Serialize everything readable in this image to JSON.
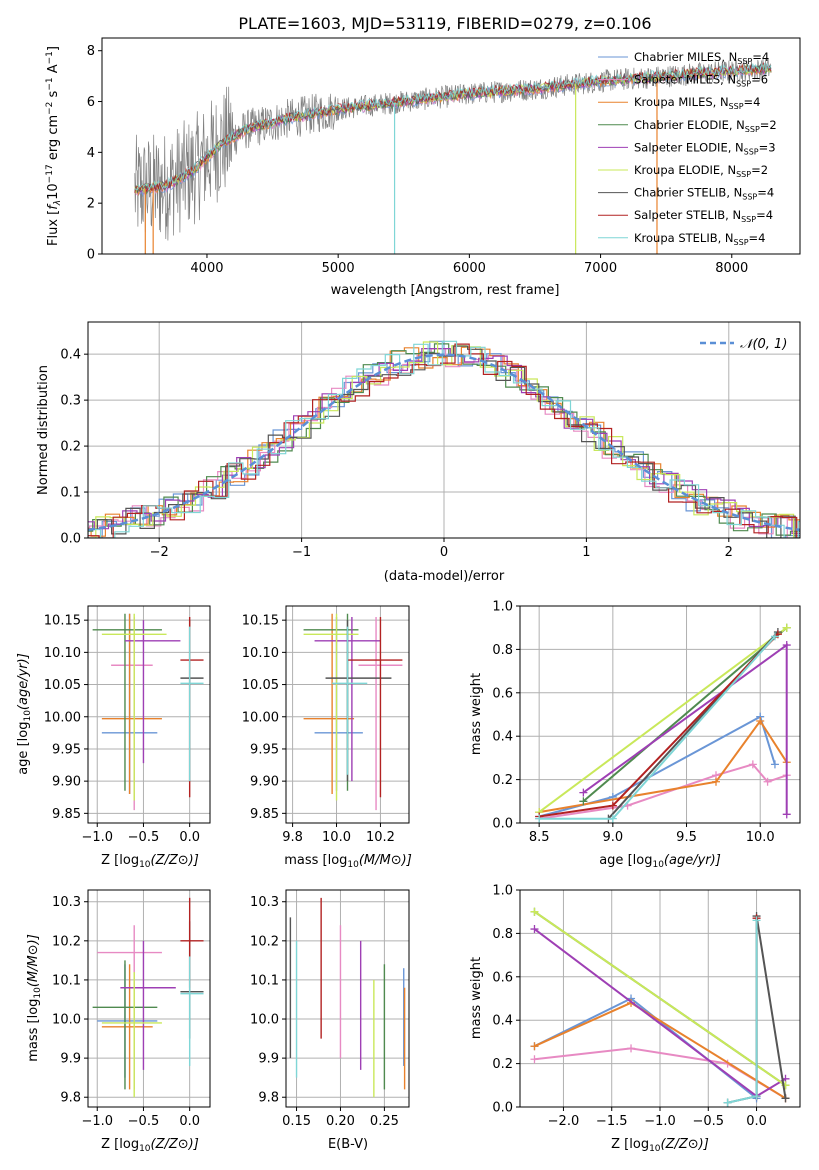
{
  "title": "PLATE=1603, MJD=53119, FIBERID=0279, z=0.106",
  "colors": {
    "chabrier_miles": "#6a96d6",
    "salpeter_miles": "#e78ac3",
    "kroupa_miles": "#e8822d",
    "chabrier_elodie": "#4f8a4f",
    "salpeter_elodie": "#9e3fb4",
    "kroupa_elodie": "#c9e85a",
    "chabrier_stelib": "#555555",
    "salpeter_stelib": "#b22222",
    "kroupa_stelib": "#7fd6d6",
    "normal_curve": "#5a8fd6"
  },
  "chart_data": [
    {
      "id": "spectrum",
      "type": "line",
      "xlabel": "wavelength [Angstrom, rest frame]",
      "ylabel_parts": [
        "Flux [",
        "f",
        "λ",
        "10",
        "−17",
        " erg cm",
        "−2",
        " s",
        "−1",
        " A",
        "−1",
        "]"
      ],
      "xlim": [
        3200,
        8520
      ],
      "ylim": [
        0,
        8.5
      ],
      "xticks": [
        4000,
        5000,
        6000,
        7000,
        8000
      ],
      "yticks": [
        0,
        2,
        4,
        6,
        8
      ],
      "legend_position": "top-right",
      "legend": [
        {
          "label": "Chabrier MILES, N",
          "sub": "SSP",
          "suffix": "=4",
          "color_key": "chabrier_miles"
        },
        {
          "label": "Salpeter MILES, N",
          "sub": "SSP",
          "suffix": "=6",
          "color_key": "salpeter_miles"
        },
        {
          "label": "Kroupa MILES, N",
          "sub": "SSP",
          "suffix": "=4",
          "color_key": "kroupa_miles"
        },
        {
          "label": "Chabrier ELODIE, N",
          "sub": "SSP",
          "suffix": "=2",
          "color_key": "chabrier_elodie"
        },
        {
          "label": "Salpeter ELODIE, N",
          "sub": "SSP",
          "suffix": "=3",
          "color_key": "salpeter_elodie"
        },
        {
          "label": "Kroupa ELODIE, N",
          "sub": "SSP",
          "suffix": "=2",
          "color_key": "kroupa_elodie"
        },
        {
          "label": "Chabrier STELIB, N",
          "sub": "SSP",
          "suffix": "=4",
          "color_key": "chabrier_stelib"
        },
        {
          "label": "Salpeter STELIB, N",
          "sub": "SSP",
          "suffix": "=4",
          "color_key": "salpeter_stelib"
        },
        {
          "label": "Kroupa STELIB, N",
          "sub": "SSP",
          "suffix": "=4",
          "color_key": "kroupa_stelib"
        }
      ],
      "continuum": {
        "x": [
          3450,
          3700,
          3900,
          4100,
          4300,
          4600,
          5000,
          5500,
          6000,
          6500,
          7000,
          7500,
          8000,
          8300
        ],
        "y": [
          2.5,
          2.7,
          3.3,
          4.3,
          4.9,
          5.3,
          5.7,
          6.0,
          6.3,
          6.5,
          6.8,
          7.0,
          7.2,
          7.3
        ]
      },
      "spikes": [
        {
          "x": 3530,
          "color_key": "kroupa_miles"
        },
        {
          "x": 3590,
          "color_key": "kroupa_miles"
        },
        {
          "x": 5430,
          "color_key": "kroupa_stelib"
        },
        {
          "x": 6810,
          "color_key": "kroupa_elodie"
        },
        {
          "x": 7430,
          "color_key": "kroupa_miles"
        }
      ]
    },
    {
      "id": "residuals",
      "type": "line",
      "xlabel": "(data-model)/error",
      "ylabel": "Normed distribution",
      "xlim": [
        -2.5,
        2.5
      ],
      "ylim": [
        0,
        0.47
      ],
      "xticks": [
        -2,
        -1,
        0,
        1,
        2
      ],
      "yticks": [
        0.0,
        0.1,
        0.2,
        0.3,
        0.4
      ],
      "grid": true,
      "legend_position": "top-right",
      "legend_label": "𝒩(0, 1)",
      "curve": "normal(0,1)"
    },
    {
      "id": "age_vs_Z",
      "type": "scatter",
      "xlabel_pre": "Z [log",
      "xlabel_sub": "10",
      "xlabel_post": "(Z/Z⊙)]",
      "ylabel_pre": "age  [log",
      "ylabel_sub": "10",
      "ylabel_post": "(age/yr)]",
      "xlim": [
        -1.1,
        0.22
      ],
      "ylim": [
        9.835,
        10.172
      ],
      "xticks": [
        -1.0,
        -0.5,
        0.0
      ],
      "yticks": [
        9.85,
        9.9,
        9.95,
        10.0,
        10.05,
        10.1,
        10.15
      ],
      "grid": true,
      "points": [
        {
          "key": "chabrier_miles",
          "x": -0.65,
          "y": 9.975,
          "xe": [
            -0.95,
            -0.35
          ],
          "ye": [
            9.88,
            10.16
          ]
        },
        {
          "key": "salpeter_miles",
          "x": -0.6,
          "y": 10.08,
          "xe": [
            -0.85,
            -0.4
          ],
          "ye": [
            9.855,
            10.155
          ]
        },
        {
          "key": "kroupa_miles",
          "x": -0.65,
          "y": 9.997,
          "xe": [
            -0.95,
            -0.3
          ],
          "ye": [
            9.88,
            10.16
          ]
        },
        {
          "key": "chabrier_elodie",
          "x": -0.7,
          "y": 10.135,
          "xe": [
            -1.05,
            -0.3
          ],
          "ye": [
            9.885,
            10.16
          ]
        },
        {
          "key": "salpeter_elodie",
          "x": -0.5,
          "y": 10.118,
          "xe": [
            -0.7,
            -0.1
          ],
          "ye": [
            9.928,
            10.15
          ]
        },
        {
          "key": "kroupa_elodie",
          "x": -0.6,
          "y": 10.128,
          "xe": [
            -0.95,
            -0.25
          ],
          "ye": [
            9.87,
            10.16
          ]
        },
        {
          "key": "chabrier_stelib",
          "x": 0.0,
          "y": 10.06,
          "xe": [
            -0.1,
            0.15
          ],
          "ye": [
            9.9,
            10.15
          ]
        },
        {
          "key": "salpeter_stelib",
          "x": 0.0,
          "y": 10.088,
          "xe": [
            -0.1,
            0.15
          ],
          "ye": [
            9.875,
            10.155
          ]
        },
        {
          "key": "kroupa_stelib",
          "x": 0.0,
          "y": 10.052,
          "xe": [
            -0.1,
            0.15
          ],
          "ye": [
            9.9,
            10.14
          ]
        }
      ]
    },
    {
      "id": "age_vs_mass",
      "type": "scatter",
      "xlabel_pre": "mass [log",
      "xlabel_sub": "10",
      "xlabel_post": "(M/M⊙)]",
      "xlim": [
        9.77,
        10.33
      ],
      "ylim": [
        9.835,
        10.172
      ],
      "xticks": [
        9.8,
        10.0,
        10.2
      ],
      "yticks": [
        9.85,
        9.9,
        9.95,
        10.0,
        10.05,
        10.1,
        10.15
      ],
      "grid": true,
      "points": [
        {
          "key": "chabrier_miles",
          "x": 10.0,
          "y": 9.975,
          "xe": [
            9.9,
            10.12
          ],
          "ye": [
            9.885,
            10.155
          ]
        },
        {
          "key": "salpeter_miles",
          "x": 10.18,
          "y": 10.08,
          "xe": [
            10.1,
            10.3
          ],
          "ye": [
            9.855,
            10.155
          ]
        },
        {
          "key": "kroupa_miles",
          "x": 9.98,
          "y": 9.997,
          "xe": [
            9.85,
            10.08
          ],
          "ye": [
            9.88,
            10.16
          ]
        },
        {
          "key": "chabrier_elodie",
          "x": 10.05,
          "y": 10.135,
          "xe": [
            9.85,
            10.1
          ],
          "ye": [
            9.885,
            10.16
          ]
        },
        {
          "key": "salpeter_elodie",
          "x": 10.07,
          "y": 10.118,
          "xe": [
            9.9,
            10.2
          ],
          "ye": [
            9.9,
            10.155
          ]
        },
        {
          "key": "kroupa_elodie",
          "x": 10.0,
          "y": 10.128,
          "xe": [
            9.85,
            10.1
          ],
          "ye": [
            9.87,
            10.16
          ]
        },
        {
          "key": "chabrier_stelib",
          "x": 10.05,
          "y": 10.06,
          "xe": [
            9.95,
            10.25
          ],
          "ye": [
            9.9,
            10.15
          ]
        },
        {
          "key": "salpeter_stelib",
          "x": 10.2,
          "y": 10.088,
          "xe": [
            10.05,
            10.3
          ],
          "ye": [
            9.875,
            10.155
          ]
        },
        {
          "key": "kroupa_stelib",
          "x": 10.05,
          "y": 10.052,
          "xe": [
            9.98,
            10.14
          ],
          "ye": [
            9.91,
            10.14
          ]
        }
      ]
    },
    {
      "id": "massweight_vs_age",
      "type": "line",
      "xlabel_pre": "age  [log",
      "xlabel_sub": "10",
      "xlabel_post": "(age/yr)]",
      "ylabel": "mass weight",
      "xlim": [
        8.37,
        10.27
      ],
      "ylim": [
        0.0,
        1.0
      ],
      "xticks": [
        8.5,
        9.0,
        9.5,
        10.0
      ],
      "yticks": [
        0.0,
        0.2,
        0.4,
        0.6,
        0.8,
        1.0
      ],
      "grid": true,
      "series": [
        {
          "key": "chabrier_miles",
          "x": [
            8.5,
            9.0,
            10.0,
            10.1
          ],
          "y": [
            0.03,
            0.12,
            0.49,
            0.27
          ]
        },
        {
          "key": "salpeter_miles",
          "x": [
            8.5,
            9.1,
            9.7,
            9.95,
            10.05,
            10.18
          ],
          "y": [
            0.02,
            0.08,
            0.22,
            0.27,
            0.19,
            0.22
          ]
        },
        {
          "key": "kroupa_miles",
          "x": [
            8.5,
            9.7,
            10.0,
            10.18
          ],
          "y": [
            0.05,
            0.19,
            0.47,
            0.28
          ]
        },
        {
          "key": "chabrier_elodie",
          "x": [
            8.8,
            10.18
          ],
          "y": [
            0.1,
            0.9
          ]
        },
        {
          "key": "salpeter_elodie",
          "x": [
            8.8,
            10.18,
            10.18
          ],
          "y": [
            0.14,
            0.82,
            0.04
          ]
        },
        {
          "key": "kroupa_elodie",
          "x": [
            8.5,
            10.18
          ],
          "y": [
            0.05,
            0.9
          ]
        },
        {
          "key": "chabrier_stelib",
          "x": [
            8.97,
            10.12
          ],
          "y": [
            0.02,
            0.88
          ]
        },
        {
          "key": "salpeter_stelib",
          "x": [
            8.5,
            9.0,
            10.12
          ],
          "y": [
            0.03,
            0.08,
            0.87
          ]
        },
        {
          "key": "kroupa_stelib",
          "x": [
            8.5,
            9.0,
            10.1
          ],
          "y": [
            0.02,
            0.02,
            0.86
          ]
        }
      ]
    },
    {
      "id": "mass_vs_Z",
      "type": "scatter",
      "xlabel_pre": "Z [log",
      "xlabel_sub": "10",
      "xlabel_post": "(Z/Z⊙)]",
      "ylabel_pre": "mass [log",
      "ylabel_sub": "10",
      "ylabel_post": "(M/M⊙)]",
      "xlim": [
        -1.1,
        0.22
      ],
      "ylim": [
        9.775,
        10.33
      ],
      "xticks": [
        -1.0,
        -0.5,
        0.0
      ],
      "yticks": [
        9.8,
        9.9,
        10.0,
        10.1,
        10.2,
        10.3
      ],
      "grid": true,
      "points": [
        {
          "key": "chabrier_miles",
          "x": -0.7,
          "y": 9.995,
          "xe": [
            -1.0,
            -0.35
          ],
          "ye": [
            9.85,
            10.14
          ]
        },
        {
          "key": "salpeter_miles",
          "x": -0.6,
          "y": 10.17,
          "xe": [
            -1.0,
            -0.3
          ],
          "ye": [
            9.82,
            10.24
          ]
        },
        {
          "key": "kroupa_miles",
          "x": -0.65,
          "y": 9.98,
          "xe": [
            -0.95,
            -0.4
          ],
          "ye": [
            9.82,
            10.14
          ]
        },
        {
          "key": "chabrier_elodie",
          "x": -0.7,
          "y": 10.03,
          "xe": [
            -1.05,
            -0.35
          ],
          "ye": [
            9.82,
            10.15
          ]
        },
        {
          "key": "salpeter_elodie",
          "x": -0.5,
          "y": 10.08,
          "xe": [
            -0.75,
            -0.15
          ],
          "ye": [
            9.87,
            10.2
          ]
        },
        {
          "key": "kroupa_elodie",
          "x": -0.6,
          "y": 9.99,
          "xe": [
            -0.95,
            -0.3
          ],
          "ye": [
            9.8,
            10.12
          ]
        },
        {
          "key": "chabrier_stelib",
          "x": 0.0,
          "y": 10.07,
          "xe": [
            -0.1,
            0.15
          ],
          "ye": [
            9.95,
            10.25
          ]
        },
        {
          "key": "salpeter_stelib",
          "x": 0.0,
          "y": 10.2,
          "xe": [
            -0.1,
            0.15
          ],
          "ye": [
            10.08,
            10.31
          ]
        },
        {
          "key": "kroupa_stelib",
          "x": 0.0,
          "y": 10.065,
          "xe": [
            -0.1,
            0.15
          ],
          "ye": [
            9.88,
            10.16
          ]
        }
      ]
    },
    {
      "id": "mass_vs_ebv",
      "type": "scatter",
      "xlabel": "E(B-V)",
      "xlim": [
        0.138,
        0.278
      ],
      "ylim": [
        9.775,
        10.33
      ],
      "xticks": [
        0.15,
        0.2,
        0.25
      ],
      "yticks": [
        9.8,
        9.9,
        10.0,
        10.1,
        10.2,
        10.3
      ],
      "grid": true,
      "bars": [
        {
          "key": "chabrier_stelib",
          "x": 0.143,
          "ye": [
            9.9,
            10.26
          ]
        },
        {
          "key": "kroupa_stelib",
          "x": 0.15,
          "ye": [
            9.85,
            10.2
          ]
        },
        {
          "key": "salpeter_stelib",
          "x": 0.178,
          "ye": [
            9.95,
            10.31
          ]
        },
        {
          "key": "salpeter_miles",
          "x": 0.2,
          "ye": [
            9.9,
            10.24
          ]
        },
        {
          "key": "salpeter_elodie",
          "x": 0.223,
          "ye": [
            9.87,
            10.2
          ]
        },
        {
          "key": "kroupa_elodie",
          "x": 0.238,
          "ye": [
            9.8,
            10.1
          ]
        },
        {
          "key": "chabrier_elodie",
          "x": 0.25,
          "ye": [
            9.82,
            10.14
          ]
        },
        {
          "key": "chabrier_miles",
          "x": 0.272,
          "ye": [
            9.88,
            10.13
          ]
        },
        {
          "key": "kroupa_miles",
          "x": 0.273,
          "ye": [
            9.82,
            10.08
          ]
        }
      ]
    },
    {
      "id": "massweight_vs_Z",
      "type": "line",
      "xlabel_pre": "Z [log",
      "xlabel_sub": "10",
      "xlabel_post": "(Z/Z⊙)]",
      "ylabel": "mass weight",
      "xlim": [
        -2.45,
        0.45
      ],
      "ylim": [
        0.0,
        1.0
      ],
      "xticks": [
        -2.0,
        -1.5,
        -1.0,
        -0.5,
        0.0
      ],
      "yticks": [
        0.0,
        0.2,
        0.4,
        0.6,
        0.8,
        1.0
      ],
      "grid": true,
      "series": [
        {
          "key": "chabrier_miles",
          "x": [
            -2.3,
            -1.3,
            0.0
          ],
          "y": [
            0.28,
            0.5,
            0.04
          ]
        },
        {
          "key": "salpeter_miles",
          "x": [
            -2.3,
            -1.3,
            -0.3,
            0.3
          ],
          "y": [
            0.22,
            0.27,
            0.2,
            0.04
          ]
        },
        {
          "key": "kroupa_miles",
          "x": [
            -2.3,
            -1.3,
            0.3
          ],
          "y": [
            0.28,
            0.48,
            0.04
          ]
        },
        {
          "key": "chabrier_elodie",
          "x": [
            -2.3,
            0.3
          ],
          "y": [
            0.9,
            0.1
          ]
        },
        {
          "key": "salpeter_elodie",
          "x": [
            -2.3,
            0.0,
            0.3
          ],
          "y": [
            0.82,
            0.05,
            0.13
          ]
        },
        {
          "key": "kroupa_elodie",
          "x": [
            -2.3,
            0.3
          ],
          "y": [
            0.9,
            0.1
          ]
        },
        {
          "key": "chabrier_stelib",
          "x": [
            -0.3,
            0.0,
            0.0,
            0.3
          ],
          "y": [
            0.02,
            0.05,
            0.88,
            0.04
          ]
        },
        {
          "key": "salpeter_stelib",
          "x": [
            0.0,
            0.0
          ],
          "y": [
            0.87,
            0.05
          ]
        },
        {
          "key": "kroupa_stelib",
          "x": [
            -0.3,
            0.0,
            0.0
          ],
          "y": [
            0.02,
            0.05,
            0.86
          ]
        }
      ]
    }
  ]
}
